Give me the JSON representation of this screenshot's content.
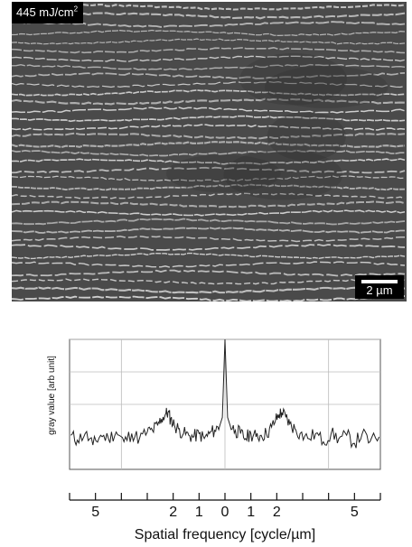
{
  "micrograph": {
    "fluence_value": "445 mJ/cm",
    "fluence_exponent": "2",
    "scale_bar_label": "2 µm",
    "background_color": "#4a4a4a",
    "stripe_color": "#d8d8d8"
  },
  "chart_data": {
    "type": "line",
    "title": "",
    "xlabel": "Spatial frequency [cycle/µm]",
    "ylabel": "gray value [arb unit]",
    "xlim": [
      -6,
      6
    ],
    "ylim": [
      0,
      4
    ],
    "x_tick_labels": [
      {
        "value": -5,
        "label": "5"
      },
      {
        "value": -2,
        "label": "2"
      },
      {
        "value": -1,
        "label": "1"
      },
      {
        "value": 0,
        "label": "0"
      },
      {
        "value": 1,
        "label": "1"
      },
      {
        "value": 2,
        "label": "2"
      },
      {
        "value": 5,
        "label": "5"
      }
    ],
    "x_ticks": [
      -6,
      -5,
      -4,
      -3,
      -2,
      -1,
      0,
      1,
      2,
      3,
      4,
      5,
      6
    ],
    "grid": true,
    "grid_x": [
      -4,
      0,
      4
    ],
    "grid_y": [
      2,
      3,
      4
    ],
    "series": [
      {
        "points": [
          [
            -5.95,
            1.05
          ],
          [
            -5.7,
            0.9
          ],
          [
            -5.4,
            1.1
          ],
          [
            -5.1,
            0.75
          ],
          [
            -4.8,
            1.05
          ],
          [
            -4.5,
            0.95
          ],
          [
            -4.2,
            1.15
          ],
          [
            -3.9,
            0.85
          ],
          [
            -3.6,
            1.1
          ],
          [
            -3.3,
            0.95
          ],
          [
            -3.0,
            1.15
          ],
          [
            -2.8,
            1.2
          ],
          [
            -2.6,
            1.35
          ],
          [
            -2.45,
            1.55
          ],
          [
            -2.3,
            1.7
          ],
          [
            -2.2,
            1.75
          ],
          [
            -2.1,
            1.55
          ],
          [
            -1.95,
            1.35
          ],
          [
            -1.8,
            1.25
          ],
          [
            -1.6,
            1.1
          ],
          [
            -1.4,
            1.05
          ],
          [
            -1.2,
            1.0
          ],
          [
            -1.0,
            1.1
          ],
          [
            -0.8,
            0.95
          ],
          [
            -0.6,
            1.1
          ],
          [
            -0.4,
            1.2
          ],
          [
            -0.2,
            1.35
          ],
          [
            -0.1,
            1.6
          ],
          [
            0.0,
            4.0
          ],
          [
            0.1,
            1.6
          ],
          [
            0.2,
            1.35
          ],
          [
            0.4,
            1.2
          ],
          [
            0.6,
            1.1
          ],
          [
            0.8,
            0.95
          ],
          [
            1.0,
            1.1
          ],
          [
            1.2,
            1.0
          ],
          [
            1.4,
            1.05
          ],
          [
            1.6,
            1.1
          ],
          [
            1.8,
            1.3
          ],
          [
            1.95,
            1.5
          ],
          [
            2.1,
            1.7
          ],
          [
            2.2,
            1.75
          ],
          [
            2.35,
            1.6
          ],
          [
            2.5,
            1.4
          ],
          [
            2.7,
            1.25
          ],
          [
            2.9,
            1.1
          ],
          [
            3.2,
            0.95
          ],
          [
            3.5,
            1.1
          ],
          [
            3.8,
            0.85
          ],
          [
            4.1,
            1.1
          ],
          [
            4.4,
            0.95
          ],
          [
            4.7,
            1.05
          ],
          [
            5.0,
            0.8
          ],
          [
            5.3,
            1.1
          ],
          [
            5.6,
            0.85
          ],
          [
            5.95,
            1.0
          ]
        ]
      }
    ]
  }
}
